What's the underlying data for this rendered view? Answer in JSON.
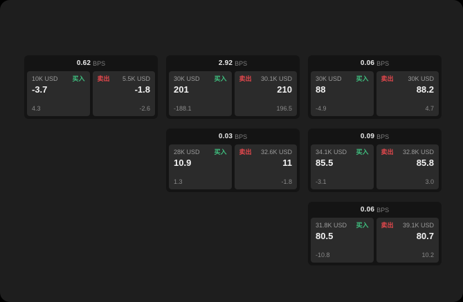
{
  "colors": {
    "buy_accent": "#3fbf7f",
    "sell_accent": "#e5484d",
    "window_background": "#1e1e1e"
  },
  "cards": [
    {
      "bps": "0.62",
      "unit": "BPS",
      "buy": {
        "size": "10K USD",
        "label": "买入",
        "price": "-3.7",
        "delta": "4.3"
      },
      "sell": {
        "label": "卖出",
        "size": "5.5K USD",
        "price": "-1.8",
        "delta": "-2.6"
      }
    },
    {
      "bps": "2.92",
      "unit": "BPS",
      "buy": {
        "size": "30K USD",
        "label": "买入",
        "price": "201",
        "delta": "-188.1"
      },
      "sell": {
        "label": "卖出",
        "size": "30.1K USD",
        "price": "210",
        "delta": "196.5"
      }
    },
    {
      "bps": "0.06",
      "unit": "BPS",
      "buy": {
        "size": "30K USD",
        "label": "买入",
        "price": "88",
        "delta": "-4.9"
      },
      "sell": {
        "label": "卖出",
        "size": "30K USD",
        "price": "88.2",
        "delta": "4.7"
      }
    },
    {
      "bps": "0.03",
      "unit": "BPS",
      "buy": {
        "size": "28K USD",
        "label": "买入",
        "price": "10.9",
        "delta": "1.3"
      },
      "sell": {
        "label": "卖出",
        "size": "32.6K USD",
        "price": "11",
        "delta": "-1.8"
      }
    },
    {
      "bps": "0.09",
      "unit": "BPS",
      "buy": {
        "size": "34.1K USD",
        "label": "买入",
        "price": "85.5",
        "delta": "-3.1"
      },
      "sell": {
        "label": "卖出",
        "size": "32.8K USD",
        "price": "85.8",
        "delta": "3.0"
      }
    },
    {
      "bps": "0.06",
      "unit": "BPS",
      "buy": {
        "size": "31.8K USD",
        "label": "买入",
        "price": "80.5",
        "delta": "-10.8"
      },
      "sell": {
        "label": "卖出",
        "size": "39.1K USD",
        "price": "80.7",
        "delta": "10.2"
      }
    }
  ]
}
